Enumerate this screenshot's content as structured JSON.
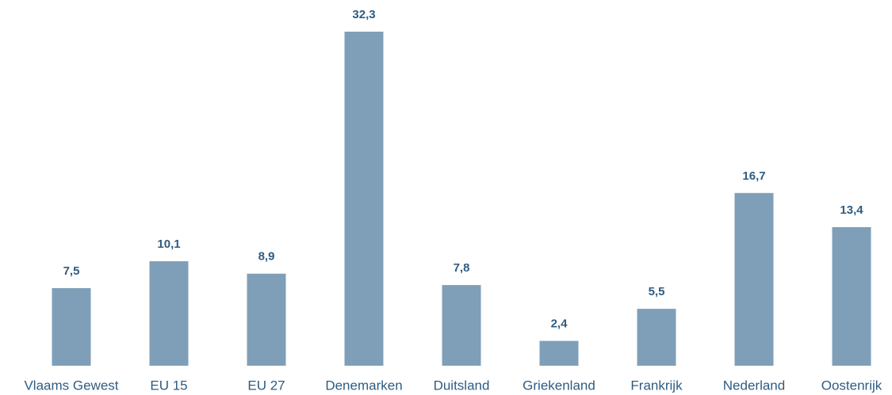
{
  "chart_data": {
    "type": "bar",
    "categories": [
      "Vlaams Gewest",
      "EU 15",
      "EU 27",
      "Denemarken",
      "Duitsland",
      "Griekenland",
      "Frankrijk",
      "Nederland",
      "Oostenrijk"
    ],
    "values": [
      7.5,
      10.1,
      8.9,
      32.3,
      7.8,
      2.4,
      5.5,
      16.7,
      13.4
    ],
    "value_labels": [
      "7,5",
      "10,1",
      "8,9",
      "32,3",
      "7,8",
      "2,4",
      "5,5",
      "16,7",
      "13,4"
    ],
    "color": "#7f9fb8"
  }
}
